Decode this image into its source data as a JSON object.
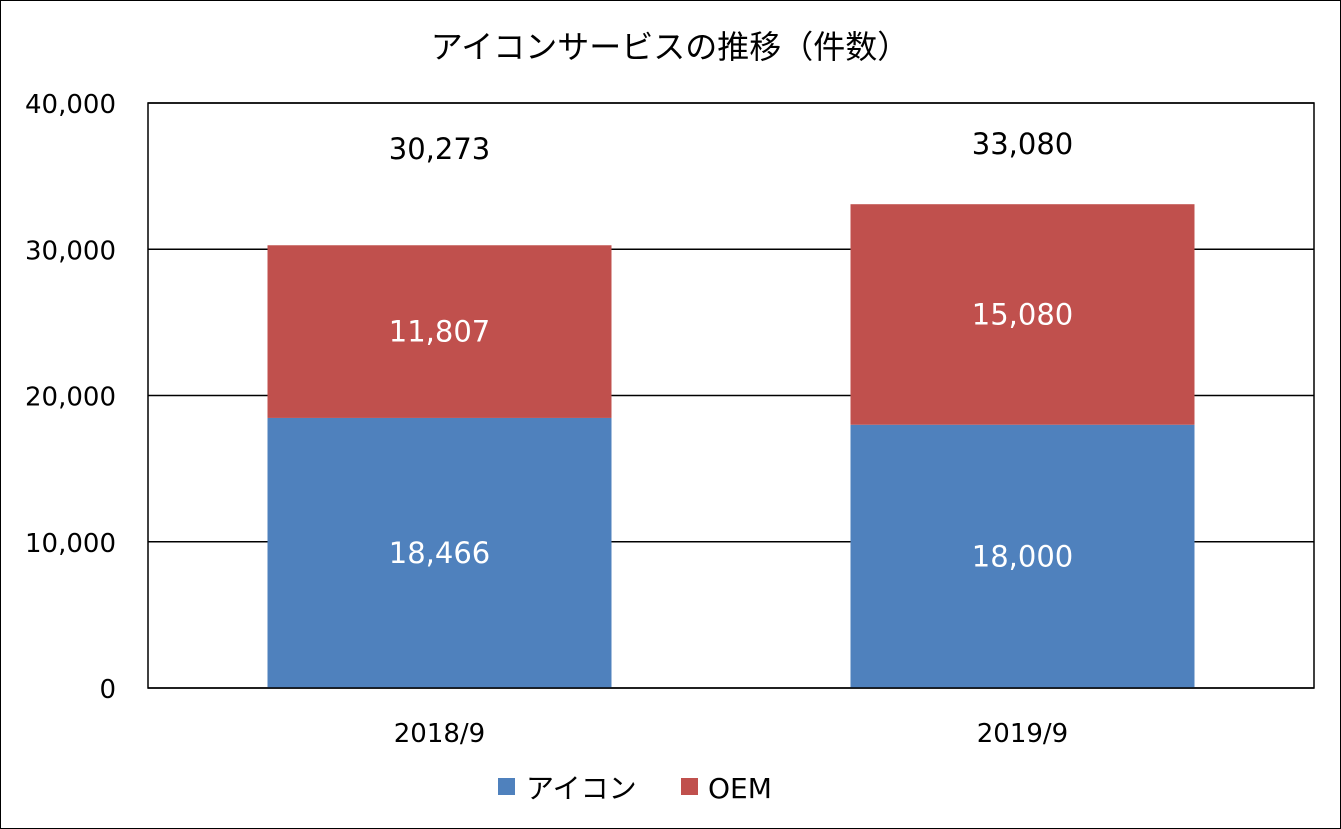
{
  "chart_data": {
    "type": "bar",
    "stacked": true,
    "title": "アイコンサービスの推移（件数）",
    "categories": [
      "2018/9",
      "2019/9"
    ],
    "series": [
      {
        "name": "アイコン",
        "color": "#4F81BD",
        "values": [
          18466,
          18000
        ],
        "labels": [
          "18,466",
          "18,000"
        ]
      },
      {
        "name": "OEM",
        "color": "#C0504D",
        "values": [
          11807,
          15080
        ],
        "labels": [
          "11,807",
          "15,080"
        ]
      }
    ],
    "totals": [
      30273,
      33080
    ],
    "total_labels": [
      "30,273",
      "33,080"
    ],
    "ylim": [
      0,
      40000
    ],
    "yticks": [
      0,
      10000,
      20000,
      30000,
      40000
    ],
    "ytick_labels": [
      "0",
      "10,000",
      "20,000",
      "30,000",
      "40,000"
    ],
    "grid": true,
    "legend": "bottom"
  }
}
